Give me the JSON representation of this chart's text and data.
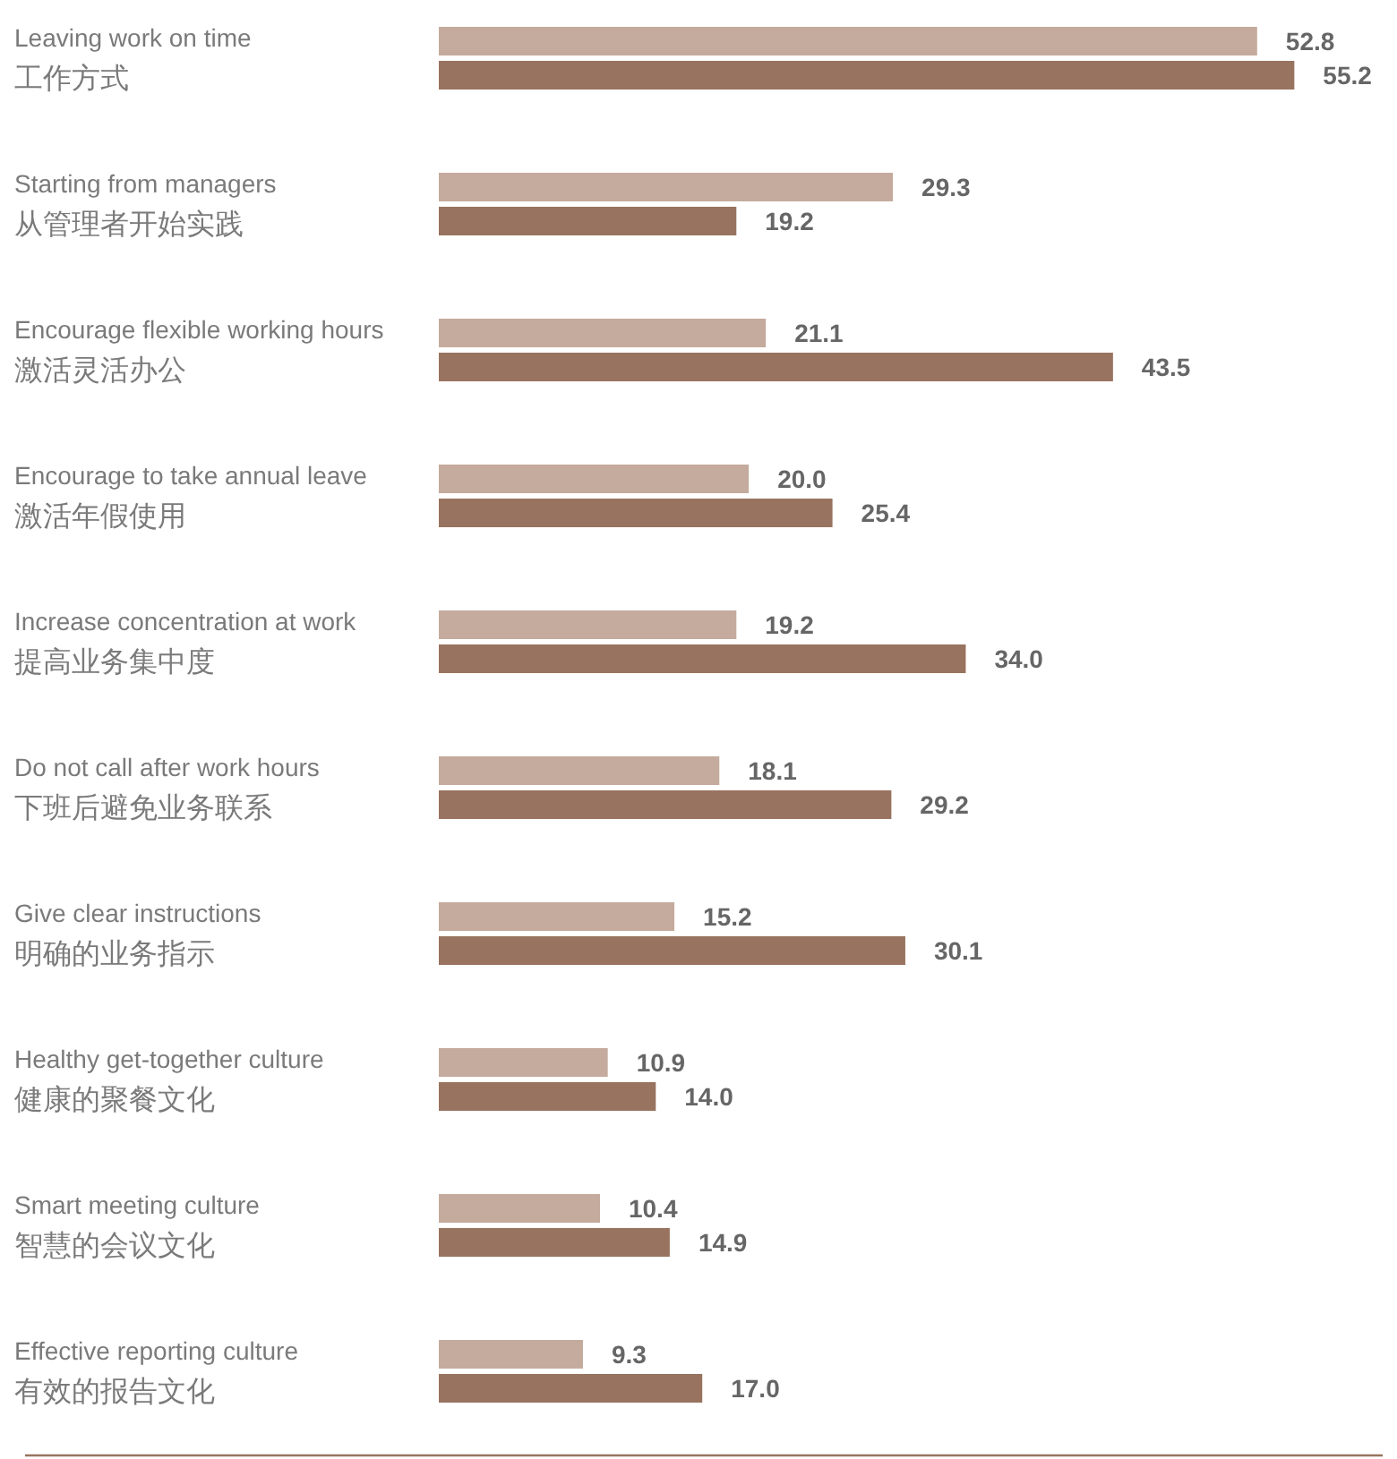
{
  "chart_data": {
    "type": "bar",
    "orientation": "horizontal",
    "categories": [
      "Leaving work on time\n工作方式",
      "Starting from managers\n从管理者开始实践",
      "Encourage flexible working hours\n激活灵活办公",
      "Encourage to take annual leave\n激活年假使用",
      "Increase concentration at work\n提高业务集中度",
      "Do not call after work hours\n下班后避免业务联系",
      "Give clear instructions\n明确的业务指示",
      "Healthy get-together culture\n健康的聚餐文化",
      "Smart meeting culture\n智慧的会议文化",
      "Effective reporting culture\n有效的报告文化"
    ],
    "series": [
      {
        "color": "#c4ab9d",
        "values": [
          52.8,
          29.3,
          21.1,
          20.0,
          19.2,
          18.1,
          15.2,
          10.9,
          10.4,
          9.3
        ],
        "value_labels": [
          "52.8",
          "29.3",
          "21.1",
          "20.0",
          "19.2",
          "18.1",
          "15.2",
          "10.9",
          "10.4",
          "9.3"
        ]
      },
      {
        "color": "#98735f",
        "values": [
          55.2,
          19.2,
          43.5,
          25.4,
          34.0,
          29.2,
          30.1,
          14.0,
          14.9,
          17.0
        ],
        "value_labels": [
          "55.2",
          "19.2",
          "43.5",
          "25.4",
          "34.0",
          "29.2",
          "30.1",
          "14.0",
          "14.9",
          "17.0"
        ]
      }
    ]
  }
}
